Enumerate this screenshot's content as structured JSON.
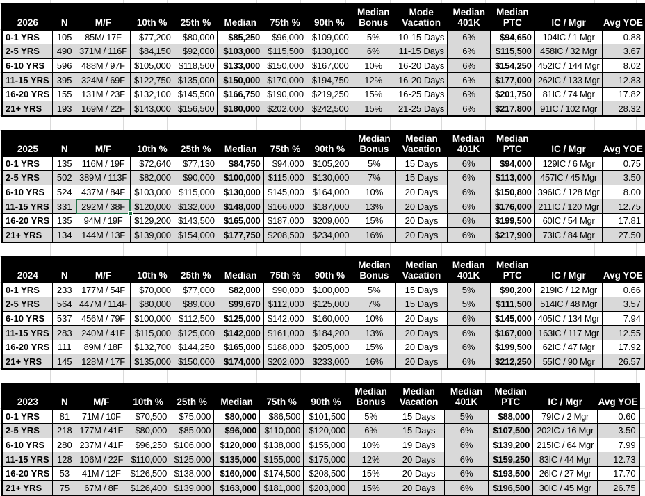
{
  "colors": {
    "header_bg": "#000000",
    "header_text": "#ffffff",
    "row_alt": "#d9d9d9",
    "row_main": "#ffffff",
    "cell_border": "#000000",
    "selection_green": "#1e7145",
    "gridline": "#dadada"
  },
  "column_keys": [
    "label",
    "n",
    "mf",
    "p10",
    "p25",
    "median",
    "p75",
    "p90",
    "bonus",
    "vacation",
    "k401",
    "ptc",
    "icmgr",
    "yoe"
  ],
  "selection": {
    "year": "2025",
    "row_index": 3,
    "row_label": "11-15 YRS",
    "column": "mf",
    "value": "292M / 38F"
  },
  "tables": [
    {
      "year": "2026",
      "headers_top": [
        "",
        "",
        "",
        "",
        "",
        "",
        "",
        "",
        "Median",
        "Mode",
        "Median",
        "Median",
        "",
        ""
      ],
      "headers_bottom": [
        "2026",
        "N",
        "M/F",
        "10th %",
        "25th %",
        "Median",
        "75th %",
        "90th %",
        "Bonus",
        "Vacation",
        "401K",
        "PTC",
        "IC / Mgr",
        "Avg YOE"
      ],
      "rows": [
        [
          "0-1 YRS",
          "105",
          "85M/ 17F",
          "$77,200",
          "$80,000",
          "$85,250",
          "$96,000",
          "$109,000",
          "5%",
          "10-15 Days",
          "6%",
          "$94,650",
          "104IC / 1 Mgr",
          "0.88"
        ],
        [
          "2-5 YRS",
          "490",
          "371M / 116F",
          "$84,150",
          "$92,000",
          "$103,000",
          "$115,500",
          "$130,100",
          "6%",
          "11-15 Days",
          "6%",
          "$115,500",
          "458IC / 32 Mgr",
          "3.67"
        ],
        [
          "6-10 YRS",
          "596",
          "488M / 97F",
          "$105,000",
          "$118,500",
          "$133,000",
          "$150,000",
          "$167,000",
          "10%",
          "16-20 Days",
          "6%",
          "$154,250",
          "452IC / 144 Mgr",
          "8.02"
        ],
        [
          "11-15 YRS",
          "395",
          "324M / 69F",
          "$122,750",
          "$135,000",
          "$150,000",
          "$170,000",
          "$194,750",
          "12%",
          "16-20 Days",
          "6%",
          "$177,000",
          "262IC / 133 Mgr",
          "12.83"
        ],
        [
          "16-20 YRS",
          "155",
          "131M / 23F",
          "$132,100",
          "$145,500",
          "$166,750",
          "$190,000",
          "$219,250",
          "15%",
          "16-25 Days",
          "6%",
          "$201,750",
          "81IC / 74 Mgr",
          "17.82"
        ],
        [
          "21+ YRS",
          "193",
          "169M / 22F",
          "$143,000",
          "$156,500",
          "$180,000",
          "$202,000",
          "$242,500",
          "15%",
          "21-25 Days",
          "6%",
          "$217,800",
          "91IC / 102 Mgr",
          "28.32"
        ]
      ]
    },
    {
      "year": "2025",
      "headers_top": [
        "",
        "",
        "",
        "",
        "",
        "",
        "",
        "",
        "Median",
        "Median",
        "Median",
        "Median",
        "",
        ""
      ],
      "headers_bottom": [
        "2025",
        "N",
        "M/F",
        "10th %",
        "25th %",
        "Median",
        "75th %",
        "90th %",
        "Bonus",
        "Vacation",
        "401K",
        "PTC",
        "IC / Mgr",
        "Avg YOE"
      ],
      "rows": [
        [
          "0-1 YRS",
          "135",
          "116M / 19F",
          "$72,640",
          "$77,130",
          "$84,750",
          "$94,000",
          "$105,200",
          "5%",
          "15 Days",
          "6%",
          "$94,000",
          "129IC / 6 Mgr",
          "0.75"
        ],
        [
          "2-5 YRS",
          "502",
          "389M / 113F",
          "$82,000",
          "$90,000",
          "$100,000",
          "$115,000",
          "$130,000",
          "7%",
          "15 Days",
          "6%",
          "$113,000",
          "457IC / 45 Mgr",
          "3.50"
        ],
        [
          "6-10 YRS",
          "524",
          "437M / 84F",
          "$103,000",
          "$115,000",
          "$130,000",
          "$145,000",
          "$164,000",
          "10%",
          "20 Days",
          "6%",
          "$150,800",
          "396IC / 128 Mgr",
          "8.00"
        ],
        [
          "11-15 YRS",
          "331",
          "292M / 38F",
          "$120,000",
          "$132,000",
          "$148,000",
          "$166,000",
          "$187,000",
          "13%",
          "20 Days",
          "6%",
          "$176,000",
          "211IC / 120 Mgr",
          "12.75"
        ],
        [
          "16-20 YRS",
          "135",
          "94M / 19F",
          "$129,200",
          "$143,500",
          "$165,000",
          "$187,000",
          "$209,000",
          "15%",
          "20 Days",
          "6%",
          "$199,500",
          "60IC / 54 Mgr",
          "17.81"
        ],
        [
          "21+ YRS",
          "134",
          "144M / 13F",
          "$139,000",
          "$154,000",
          "$177,750",
          "$208,500",
          "$234,000",
          "16%",
          "20 Days",
          "6%",
          "$217,900",
          "73IC / 84 Mgr",
          "27.50"
        ]
      ]
    },
    {
      "year": "2024",
      "headers_top": [
        "",
        "",
        "",
        "",
        "",
        "",
        "",
        "",
        "Median",
        "Median",
        "Median",
        "Median",
        "",
        ""
      ],
      "headers_bottom": [
        "2024",
        "N",
        "M/F",
        "10th %",
        "25th %",
        "Median",
        "75th %",
        "90th %",
        "Bonus",
        "Vacation",
        "401K",
        "PTC",
        "IC / Mgr",
        "Avg YOE"
      ],
      "rows": [
        [
          "0-1 YRS",
          "233",
          "177M / 54F",
          "$70,000",
          "$77,000",
          "$82,000",
          "$90,000",
          "$100,000",
          "5%",
          "15 Days",
          "5%",
          "$90,200",
          "219IC / 12 Mgr",
          "0.66"
        ],
        [
          "2-5 YRS",
          "564",
          "447M / 114F",
          "$80,000",
          "$89,000",
          "$99,670",
          "$112,000",
          "$125,000",
          "7%",
          "15 Days",
          "5%",
          "$111,500",
          "514IC / 48 Mgr",
          "3.57"
        ],
        [
          "6-10 YRS",
          "537",
          "456M / 79F",
          "$100,000",
          "$112,500",
          "$125,000",
          "$142,000",
          "$160,000",
          "10%",
          "20 Days",
          "6%",
          "$145,000",
          "405IC / 134 Mgr",
          "7.94"
        ],
        [
          "11-15 YRS",
          "283",
          "240M / 41F",
          "$115,000",
          "$125,000",
          "$142,000",
          "$161,000",
          "$184,200",
          "13%",
          "20 Days",
          "6%",
          "$167,000",
          "163IC / 117 Mgr",
          "12.55"
        ],
        [
          "16-20 YRS",
          "111",
          "89M / 18F",
          "$132,700",
          "$144,250",
          "$165,000",
          "$188,000",
          "$205,000",
          "15%",
          "20 Days",
          "6%",
          "$199,500",
          "62IC / 47 Mgr",
          "17.92"
        ],
        [
          "21+ YRS",
          "145",
          "128M / 17F",
          "$135,000",
          "$150,000",
          "$174,000",
          "$202,000",
          "$233,000",
          "16%",
          "20 Days",
          "6%",
          "$212,250",
          "55IC / 90 Mgr",
          "26.57"
        ]
      ]
    },
    {
      "year": "2023",
      "headers_top": [
        "",
        "",
        "",
        "",
        "",
        "",
        "",
        "",
        "Median",
        "Median",
        "Median",
        "Median",
        "",
        ""
      ],
      "headers_bottom": [
        "2023",
        "N",
        "M/F",
        "10th %",
        "25th %",
        "Median",
        "75th %",
        "90th %",
        "Bonus",
        "Vacation",
        "401K",
        "PTC",
        "IC / Mgr",
        "Avg YOE"
      ],
      "rows": [
        [
          "0-1 YRS",
          "81",
          "71M / 10F",
          "$70,500",
          "$75,000",
          "$80,000",
          "$86,500",
          "$101,500",
          "5%",
          "15 Days",
          "5%",
          "$88,000",
          "79IC / 2 Mgr",
          "0.60"
        ],
        [
          "2-5 YRS",
          "218",
          "177M / 41F",
          "$80,000",
          "$85,000",
          "$96,000",
          "$110,000",
          "$120,000",
          "6%",
          "15 Days",
          "6%",
          "$107,500",
          "202IC / 16 Mgr",
          "3.50"
        ],
        [
          "6-10 YRS",
          "280",
          "237M / 41F",
          "$96,250",
          "$106,000",
          "$120,000",
          "$138,000",
          "$155,000",
          "10%",
          "19 Days",
          "6%",
          "$139,200",
          "215IC / 64 Mgr",
          "7.99"
        ],
        [
          "11-15 YRS",
          "128",
          "106M / 22F",
          "$110,000",
          "$125,000",
          "$135,000",
          "$155,000",
          "$175,000",
          "12%",
          "20 Days",
          "6%",
          "$159,250",
          "83IC / 44 Mgr",
          "12.73"
        ],
        [
          "16-20 YRS",
          "53",
          "41M / 12F",
          "$126,500",
          "$138,000",
          "$160,000",
          "$174,500",
          "$208,500",
          "15%",
          "20 Days",
          "6%",
          "$193,500",
          "26IC / 27 Mgr",
          "17.70"
        ],
        [
          "21+ YRS",
          "75",
          "67M / 8F",
          "$126,400",
          "$139,000",
          "$163,000",
          "$181,000",
          "$203,000",
          "15%",
          "20 Days",
          "6%",
          "$196,500",
          "30IC / 45 Mgr",
          "26.75"
        ]
      ]
    }
  ]
}
